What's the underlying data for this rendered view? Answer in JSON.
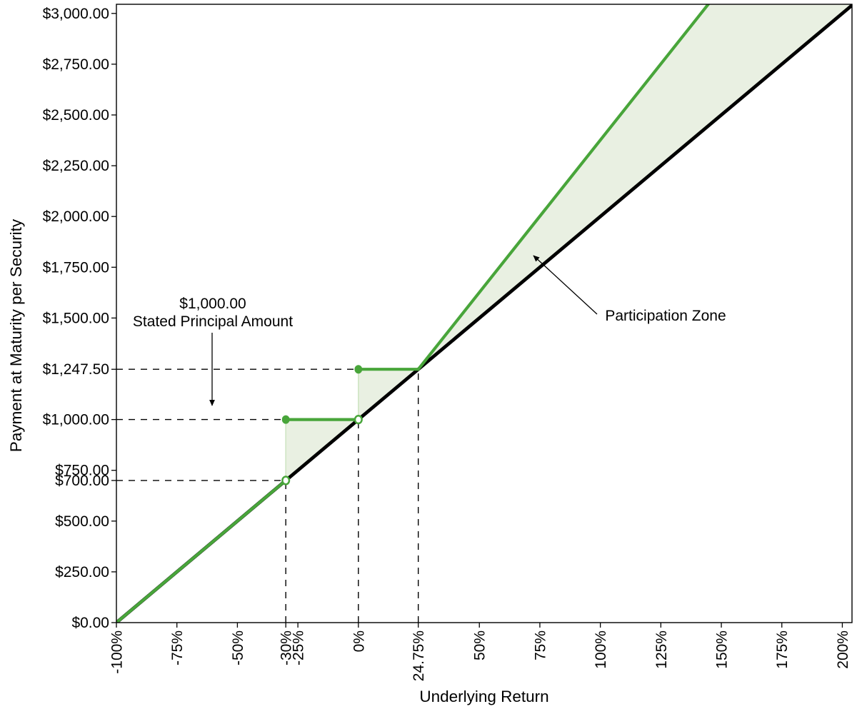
{
  "chart_data": {
    "type": "line",
    "title": "",
    "xlabel": "Underlying Return",
    "ylabel": "Payment at Maturity per Security",
    "grid": "off",
    "legend": "none",
    "background": "#ffffff",
    "colors": {
      "payoff_line": "#48a53a",
      "underlying_line": "#000000",
      "fill": "#e9f0e2",
      "fill_edge": "#cfe5c4",
      "guide": "#000000",
      "text": "#000000"
    },
    "x_axis": {
      "min": -100,
      "max": 204,
      "unit": "%",
      "ticks": [
        {
          "v": -100,
          "label": "-100%"
        },
        {
          "v": -75,
          "label": "-75%"
        },
        {
          "v": -50,
          "label": "-50%"
        },
        {
          "v": -30,
          "label": "-30%"
        },
        {
          "v": -25,
          "label": "-25%"
        },
        {
          "v": 0,
          "label": "0%"
        },
        {
          "v": 24.75,
          "label": "24.75%"
        },
        {
          "v": 50,
          "label": "50%"
        },
        {
          "v": 75,
          "label": "75%"
        },
        {
          "v": 100,
          "label": "100%"
        },
        {
          "v": 125,
          "label": "125%"
        },
        {
          "v": 150,
          "label": "150%"
        },
        {
          "v": 175,
          "label": "175%"
        },
        {
          "v": 200,
          "label": "200%"
        }
      ]
    },
    "y_axis": {
      "min": 0,
      "max": 3045,
      "unit": "USD",
      "ticks": [
        {
          "v": 0,
          "label": "$0.00"
        },
        {
          "v": 250,
          "label": "$250.00"
        },
        {
          "v": 500,
          "label": "$500.00"
        },
        {
          "v": 700,
          "label": "$700.00"
        },
        {
          "v": 750,
          "label": "$750.00"
        },
        {
          "v": 1000,
          "label": "$1,000.00"
        },
        {
          "v": 1247.5,
          "label": "$1,247.50"
        },
        {
          "v": 1500,
          "label": "$1,500.00"
        },
        {
          "v": 1750,
          "label": "$1,750.00"
        },
        {
          "v": 2000,
          "label": "$2,000.00"
        },
        {
          "v": 2250,
          "label": "$2,250.00"
        },
        {
          "v": 2500,
          "label": "$2,500.00"
        },
        {
          "v": 2750,
          "label": "$2,750.00"
        },
        {
          "v": 3000,
          "label": "$3,000.00"
        }
      ]
    },
    "series": [
      {
        "name": "underlying-return",
        "color": "#000000",
        "width": 4.8,
        "segments": [
          [
            [
              -100,
              0
            ],
            [
              204,
              3040
            ]
          ]
        ]
      },
      {
        "name": "payment-at-maturity",
        "color": "#48a53a",
        "width": 4.2,
        "segments": [
          [
            [
              -100,
              0
            ],
            [
              -30,
              700
            ]
          ],
          [
            [
              -30,
              1000
            ],
            [
              0,
              1000
            ]
          ],
          [
            [
              0,
              1247.5
            ],
            [
              24.75,
              1247.5
            ]
          ],
          [
            [
              24.75,
              1247.5
            ],
            [
              204,
              3936.25
            ]
          ]
        ]
      }
    ],
    "markers": {
      "color": "#48a53a",
      "open": [
        [
          -30,
          700
        ],
        [
          0,
          1000
        ]
      ],
      "closed": [
        [
          -30,
          1000
        ],
        [
          0,
          1247.5
        ]
      ]
    },
    "fill_between": {
      "name": "participation-zone-fill",
      "upper": [
        [
          -30,
          700
        ],
        [
          -30,
          1000
        ],
        [
          0,
          1000
        ],
        [
          0,
          1247.5
        ],
        [
          24.75,
          1247.5
        ],
        [
          204,
          3936.25
        ]
      ],
      "lower_back": [
        [
          204,
          3040
        ],
        [
          -30,
          700
        ]
      ]
    },
    "guides": {
      "h": [
        {
          "y": 1247.5,
          "x_to": 0
        },
        {
          "y": 1000,
          "x_to": -30
        },
        {
          "y": 700,
          "x_to": -30
        }
      ],
      "v": [
        {
          "x": -30,
          "y_to": 700
        },
        {
          "x": 0,
          "y_to": 1000
        },
        {
          "x": 24.75,
          "y_to": 1247.5
        }
      ]
    },
    "key_points": {
      "stated_principal_amount": "$1,000.00",
      "buffer_threshold_return": "-30%",
      "payment_at_buffer_break": "$700.00",
      "digital_return": "24.75%",
      "payment_at_digital": "$1,247.50"
    },
    "annotations": [
      {
        "id": "principal",
        "lines": [
          "$1,000.00",
          "Stated Principal Amount"
        ],
        "font_size": 21,
        "anchor": "middle",
        "text_xy": [
          298,
          432
        ],
        "line_height": 25,
        "arrow_from": [
          297,
          466
        ],
        "arrow_to": [
          297,
          568
        ]
      },
      {
        "id": "participation",
        "lines": [
          "Participation Zone"
        ],
        "font_size": 21,
        "anchor": "middle",
        "text_xy": [
          932,
          449
        ],
        "line_height": 25,
        "arrow_from": [
          836,
          440
        ],
        "arrow_to": [
          747,
          358
        ]
      }
    ]
  }
}
